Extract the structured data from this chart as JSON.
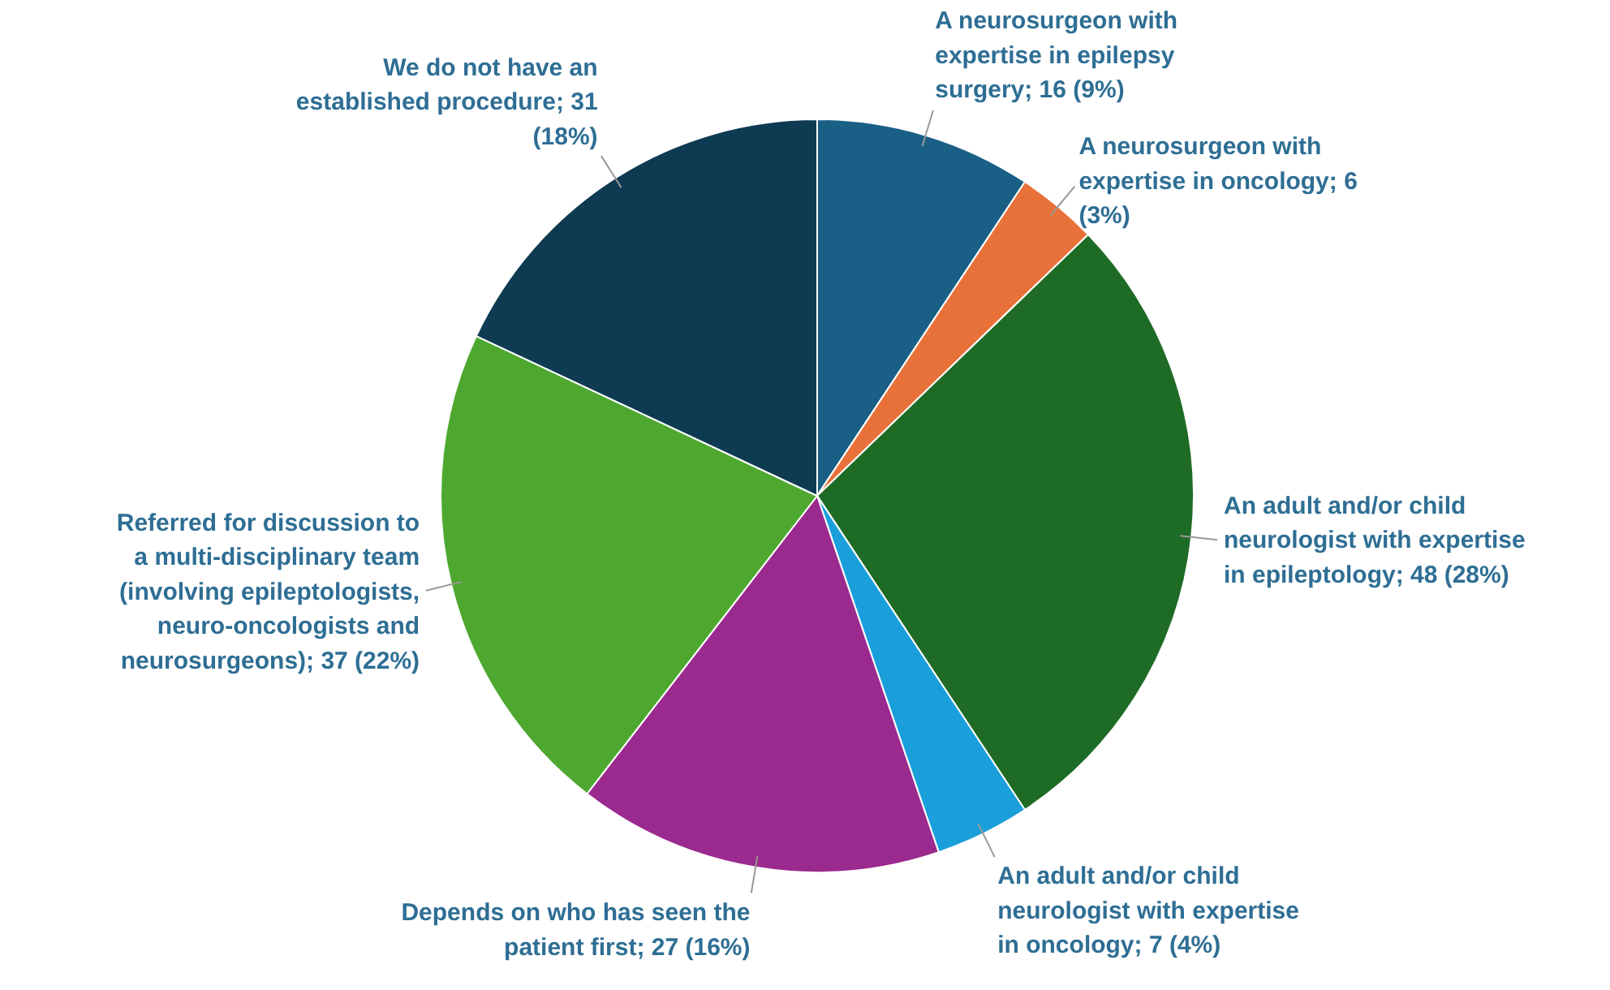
{
  "chart_data": {
    "type": "pie",
    "categories": [
      "A neurosurgeon with expertise in epilepsy surgery",
      "A neurosurgeon with expertise in oncology",
      "An adult and/or child neurologist with expertise in epileptology",
      "An adult and/or child neurologist with expertise in oncology",
      "Depends on who has seen the patient first",
      "Referred for discussion to a multi-disciplinary team (involving epileptologists, neuro-oncologists and neurosurgeons)",
      "We do not have an established procedure"
    ],
    "values": [
      16,
      6,
      48,
      7,
      27,
      37,
      31
    ],
    "colors": [
      "#1a5f85",
      "#e8713a",
      "#1e6b25",
      "#1a9fdb",
      "#9b2a8f",
      "#4ea830",
      "#0e3a52"
    ],
    "value_labels": [
      "16 (9%)",
      "6 (3%)",
      "48 (28%)",
      "7 (4%)",
      "27 (16%)",
      "37 (22%)",
      "31 (18%)"
    ]
  }
}
